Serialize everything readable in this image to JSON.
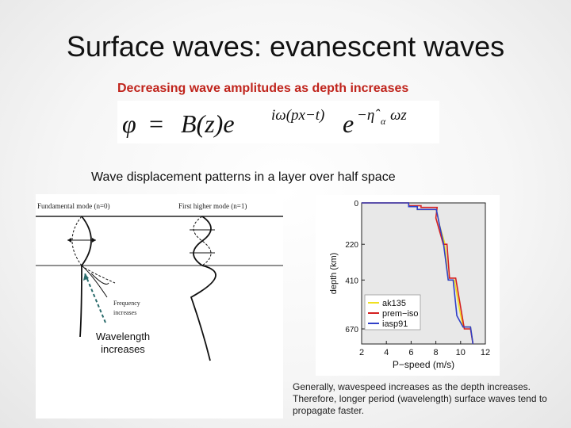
{
  "slide": {
    "title": "Surface waves: evanescent waves",
    "subtitle": "Decreasing wave amplitudes as depth increases",
    "caption": "Wave displacement patterns in a layer over half space",
    "note": "Generally, wavespeed increases as the depth increases. Therefore, longer period (wavelength) surface waves tend to propagate faster."
  },
  "equation": {
    "phi": "φ",
    "eq": "=",
    "Bz": "B(z)e",
    "exp1": "iω(px−t)",
    "e2": "e",
    "exp2": "−η̂",
    "exp2_sub": "α",
    "exp2_tail": "ωz"
  },
  "left_figure": {
    "mode0": "Fundamental mode (n=0)",
    "mode1": "First higher mode (n=1)",
    "frequency_label_1": "Frequency",
    "frequency_label_2": "increases",
    "wavelength_label_1": "Wavelength",
    "wavelength_label_2": "increases"
  },
  "chart_data": {
    "type": "line",
    "title": "",
    "xlabel": "P−speed (m/s)",
    "ylabel": "depth (km)",
    "xlim": [
      2,
      12
    ],
    "xticks": [
      2,
      4,
      6,
      8,
      10,
      12
    ],
    "ylim": [
      0,
      750
    ],
    "yticks": [
      0,
      220,
      410,
      670
    ],
    "y_inverted": true,
    "grid": false,
    "legend_position": "bottom-left",
    "series": [
      {
        "name": "ak135",
        "color": "#f0e020",
        "x": [
          2.0,
          5.8,
          5.8,
          6.5,
          6.5,
          8.04,
          8.3,
          8.7,
          9.0,
          9.5,
          9.9,
          10.2,
          10.8,
          11.0
        ],
        "y": [
          0,
          0,
          20,
          20,
          35,
          35,
          120,
          210,
          410,
          410,
          560,
          660,
          660,
          750
        ]
      },
      {
        "name": "prem−iso",
        "color": "#d42020",
        "x": [
          2.0,
          5.8,
          5.8,
          6.8,
          6.8,
          8.1,
          8.0,
          8.6,
          8.9,
          9.1,
          9.6,
          10.3,
          10.8,
          11.0
        ],
        "y": [
          0,
          0,
          15,
          15,
          24,
          24,
          80,
          220,
          220,
          400,
          400,
          670,
          670,
          750
        ]
      },
      {
        "name": "iasp91",
        "color": "#3040c8",
        "x": [
          2.0,
          5.8,
          5.8,
          6.5,
          6.5,
          8.04,
          8.3,
          8.6,
          9.0,
          9.4,
          9.7,
          10.2,
          10.8,
          11.0
        ],
        "y": [
          0,
          0,
          20,
          20,
          35,
          35,
          120,
          210,
          410,
          410,
          600,
          660,
          660,
          750
        ]
      }
    ]
  }
}
